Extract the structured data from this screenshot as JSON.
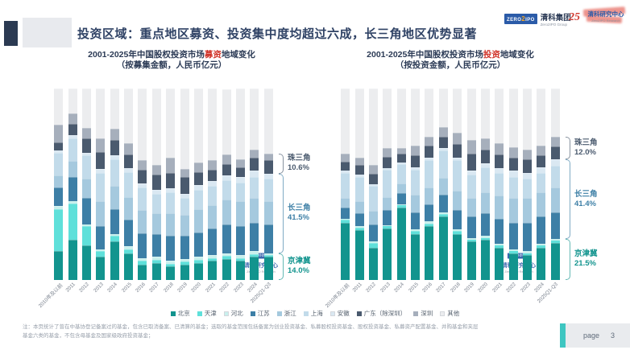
{
  "slide": {
    "title": "投资区域：重点地区募资、投资集中度均超过六成，长三角地区优势显著",
    "note_line1": "注：本页统计了曾在中基协登记备案过的基金，包含已取消备案、已清算的基金；选取的基金范围包括备案为创业投资基金、私募股权投资基金、股权投资基金、私募资产配置基金、并购基金和夹层",
    "note_line2": "基金六类的基金，不包含母基金及国家级政府投资基金；",
    "page_label": "page",
    "page_number": "3"
  },
  "logos": {
    "zero2ipo_badge": "ZERO2IPO",
    "group_name": "清科集团",
    "group_sub": "Zero2IPO Group",
    "anniversary": "25",
    "research_name": "清科研究中心",
    "research_sub": "Zero2IPO Research"
  },
  "watermark": {
    "badge": "ZERO2IPO",
    "name": "清科研究中心",
    "sub": "Zero2IPO Research"
  },
  "legend_note": "shares are percent of total, estimated from 100%-stacked bars",
  "chart_data": [
    {
      "type": "bar",
      "stacked": true,
      "unit": "% of 募集金额 (share of amount raised)",
      "title_prefix": "2001-2025年中国股权投资市场",
      "title_highlight": "募资",
      "title_suffix": "地域变化",
      "subtitle": "（按募集金额，人民币亿元）",
      "categories": [
        "2010年及以前",
        "2011",
        "2012",
        "2013",
        "2014",
        "2015",
        "2016",
        "2017",
        "2018",
        "2019",
        "2020",
        "2021",
        "2022",
        "2023",
        "2024",
        "2025Q1-Q3"
      ],
      "series": [
        {
          "name": "北京",
          "color": "#12948E",
          "values": [
            15,
            21,
            18,
            12,
            20,
            14,
            8,
            9,
            7,
            8,
            9,
            10,
            11,
            10,
            12,
            12
          ]
        },
        {
          "name": "天津",
          "color": "#5FE0DA",
          "values": [
            22,
            19,
            10,
            3,
            3,
            2,
            2,
            1.5,
            1.5,
            1.5,
            1.5,
            1.5,
            1.5,
            1.5,
            1.5,
            1.2
          ]
        },
        {
          "name": "河北",
          "color": "#C9F0ED",
          "values": [
            1.5,
            1,
            1,
            1,
            1,
            1.5,
            1.5,
            1.5,
            1.5,
            1.5,
            1.5,
            1.5,
            1.5,
            1.5,
            1.5,
            0.8
          ]
        },
        {
          "name": "江苏",
          "color": "#3D7FA6",
          "values": [
            10,
            13,
            14,
            12,
            13,
            14,
            13,
            12,
            13,
            12,
            13,
            14,
            15,
            15,
            15,
            15
          ]
        },
        {
          "name": "浙江",
          "color": "#A5C9DE",
          "values": [
            6,
            8,
            10,
            13,
            12,
            12,
            12,
            11,
            12,
            11,
            12,
            12,
            13,
            13,
            13,
            12
          ]
        },
        {
          "name": "上海",
          "color": "#C2DBEA",
          "values": [
            12,
            12,
            12,
            15,
            14,
            13,
            12,
            10,
            11,
            9,
            10,
            10,
            10,
            10,
            11,
            12
          ]
        },
        {
          "name": "安徽",
          "color": "#DAE8F2",
          "values": [
            1,
            1.5,
            1.5,
            2,
            2,
            2,
            2,
            2,
            2,
            2,
            2.5,
            2.5,
            2.5,
            3,
            3,
            2.5
          ]
        },
        {
          "name": "广东（除深圳）",
          "color": "#4A5A6E",
          "values": [
            4.5,
            6,
            7.5,
            9,
            8,
            7,
            7,
            8,
            8,
            9,
            7,
            6,
            6,
            5,
            7,
            7
          ]
        },
        {
          "name": "深圳",
          "color": "#A6AFBC",
          "values": [
            9,
            5.5,
            5.5,
            7,
            6,
            6,
            5,
            5,
            8,
            4,
            5,
            5,
            5,
            4,
            4,
            3.6
          ]
        },
        {
          "name": "其他",
          "color": "#ECEDEF",
          "values": [
            19,
            13,
            20.5,
            26,
            21,
            28.5,
            37.5,
            40,
            36,
            42,
            38.5,
            37.5,
            34,
            37,
            32,
            33.9
          ]
        }
      ],
      "regions": [
        {
          "label": "珠三角",
          "pct": "10.6%",
          "series_start": 7,
          "series_end": 8,
          "color": "#4A5A6E"
        },
        {
          "label": "长三角",
          "pct": "41.5%",
          "series_start": 3,
          "series_end": 6,
          "color": "#3D7FA6"
        },
        {
          "label": "京津冀",
          "pct": "14.0%",
          "series_start": 0,
          "series_end": 2,
          "color": "#12948E"
        }
      ]
    },
    {
      "type": "bar",
      "stacked": true,
      "unit": "% of 投资金额 (share of amount invested)",
      "title_prefix": "2001-2025年中国股权投资市场",
      "title_highlight": "投资",
      "title_suffix": "地域变化",
      "subtitle": "（按投资金额，人民币亿元）",
      "categories": [
        "2010年及以前",
        "2011",
        "2012",
        "2013",
        "2014",
        "2015",
        "2016",
        "2017",
        "2018",
        "2019",
        "2020",
        "2021",
        "2022",
        "2023",
        "2024",
        "2025Q1-Q3"
      ],
      "series": [
        {
          "name": "北京",
          "color": "#12948E",
          "values": [
            30,
            26,
            17,
            27,
            38,
            24,
            28,
            33,
            24,
            20,
            21,
            17,
            14,
            13,
            17,
            19.5
          ]
        },
        {
          "name": "天津",
          "color": "#5FE0DA",
          "values": [
            1.5,
            1.5,
            2.5,
            1,
            1,
            1.5,
            1.5,
            1.5,
            1.5,
            1,
            1,
            1,
            1,
            1,
            1,
            1
          ]
        },
        {
          "name": "河北",
          "color": "#C9F0ED",
          "values": [
            0.5,
            0.5,
            0.5,
            0.5,
            0.5,
            1,
            1,
            1,
            1,
            1,
            1,
            1,
            1,
            1,
            1,
            1
          ]
        },
        {
          "name": "江苏",
          "color": "#3D7FA6",
          "values": [
            6,
            7,
            9,
            8,
            6,
            9,
            9,
            9,
            10,
            11,
            12,
            13,
            14,
            15,
            14,
            14
          ]
        },
        {
          "name": "浙江",
          "color": "#A5C9DE",
          "values": [
            5,
            6,
            7,
            7,
            5,
            9,
            9,
            9,
            10,
            10,
            11,
            12,
            13,
            13,
            13,
            13
          ]
        },
        {
          "name": "上海",
          "color": "#C2DBEA",
          "values": [
            13,
            13,
            13,
            14,
            10,
            13,
            14,
            14,
            16,
            12,
            13,
            12,
            11,
            10,
            10,
            11
          ]
        },
        {
          "name": "安徽",
          "color": "#DAE8F2",
          "values": [
            1,
            1,
            1,
            1,
            1,
            1.5,
            1.5,
            1.5,
            1.5,
            2,
            2,
            2.5,
            3,
            3,
            3,
            3.4
          ]
        },
        {
          "name": "广东（除深圳）",
          "color": "#4A5A6E",
          "values": [
            5,
            5,
            5.5,
            6,
            4.5,
            6,
            6,
            6,
            7,
            9,
            7,
            7,
            7,
            7,
            6,
            7
          ]
        },
        {
          "name": "深圳",
          "color": "#A6AFBC",
          "values": [
            4,
            4,
            4.5,
            4.5,
            3,
            5,
            5,
            5,
            6,
            7,
            6,
            6,
            5.5,
            5,
            5,
            5
          ]
        },
        {
          "name": "其他",
          "color": "#ECEDEF",
          "values": [
            34,
            36,
            40,
            31,
            31,
            30,
            25,
            20,
            23,
            27,
            26,
            28.5,
            30.5,
            32,
            30,
            25.1
          ]
        }
      ],
      "regions": [
        {
          "label": "珠三角",
          "pct": "12.0%",
          "series_start": 7,
          "series_end": 8,
          "color": "#4A5A6E"
        },
        {
          "label": "长三角",
          "pct": "41.4%",
          "series_start": 3,
          "series_end": 6,
          "color": "#3D7FA6"
        },
        {
          "label": "京津冀",
          "pct": "21.5%",
          "series_start": 0,
          "series_end": 2,
          "color": "#12948E"
        }
      ]
    }
  ]
}
